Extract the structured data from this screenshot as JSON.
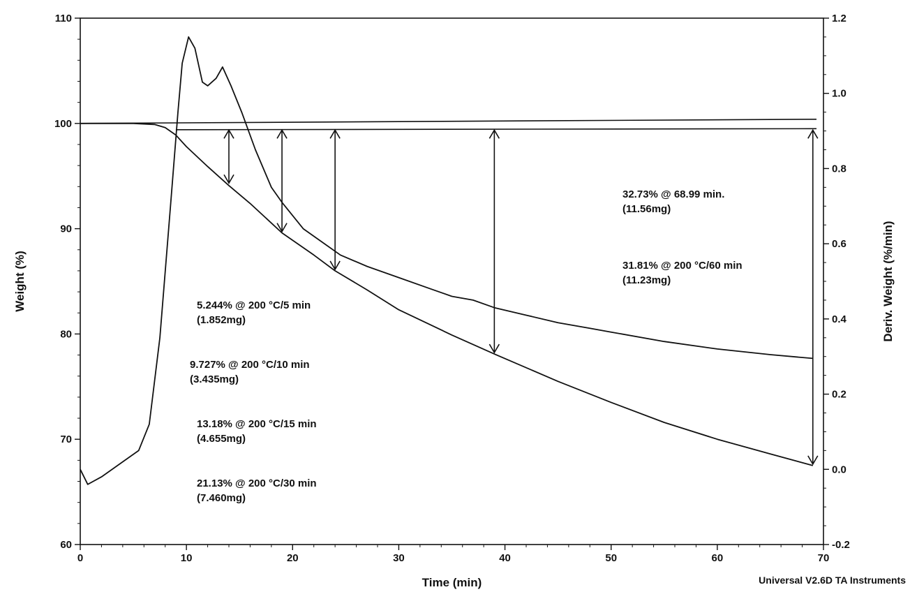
{
  "chart_data": {
    "type": "line",
    "xlabel": "Time (min)",
    "ylabel_left": "Weight (%)",
    "ylabel_right": "Deriv. Weight (%/min)",
    "xlim": [
      0,
      70
    ],
    "ylim_left": [
      60,
      110
    ],
    "ylim_right": [
      -0.2,
      1.2
    ],
    "x_ticks": [
      0,
      10,
      20,
      30,
      40,
      50,
      60,
      70
    ],
    "y_ticks_left": [
      60,
      70,
      80,
      90,
      100,
      110
    ],
    "y_ticks_right": [
      "-0.2",
      "0.0",
      "0.2",
      "0.4",
      "0.6",
      "0.8",
      "1.0",
      "1.2"
    ],
    "y_ticks_right_values": [
      -0.2,
      0.0,
      0.2,
      0.4,
      0.6,
      0.8,
      1.0,
      1.2
    ],
    "credit": "Universal V2.6D TA Instruments",
    "series": [
      {
        "axis": "left",
        "x": [
          0,
          5,
          7,
          8,
          9,
          10,
          12,
          14,
          16,
          19,
          22,
          24,
          27,
          30,
          35,
          39,
          45,
          50,
          55,
          60,
          65,
          69
        ],
        "values": [
          100,
          100,
          99.9,
          99.6,
          98.9,
          97.8,
          95.9,
          94.1,
          92.4,
          89.6,
          87.5,
          86.0,
          84.2,
          82.3,
          79.9,
          78.1,
          75.5,
          73.5,
          71.6,
          70.0,
          68.6,
          67.5
        ]
      },
      {
        "axis": "right",
        "x": [
          0,
          0.7,
          2,
          4,
          5.5,
          6.5,
          7.5,
          8.5,
          9.2,
          9.6,
          10.2,
          10.8,
          11.5,
          12,
          12.8,
          13.4,
          14.2,
          15.2,
          16.5,
          18,
          19,
          21,
          23,
          24.5,
          27,
          30,
          33,
          35,
          37,
          39,
          42,
          45,
          48,
          50,
          55,
          60,
          65,
          69
        ],
        "values": [
          0.0,
          -0.04,
          -0.02,
          0.02,
          0.05,
          0.12,
          0.35,
          0.7,
          0.95,
          1.08,
          1.15,
          1.12,
          1.03,
          1.02,
          1.04,
          1.07,
          1.02,
          0.95,
          0.85,
          0.75,
          0.71,
          0.64,
          0.6,
          0.57,
          0.54,
          0.51,
          0.48,
          0.46,
          0.45,
          0.43,
          0.41,
          0.39,
          0.375,
          0.365,
          0.34,
          0.32,
          0.305,
          0.295
        ]
      }
    ],
    "measurement_arrows": [
      {
        "x": 14,
        "y_top": 99.5,
        "y_bottom": 94.2
      },
      {
        "x": 19,
        "y_top": 99.5,
        "y_bottom": 89.6
      },
      {
        "x": 24,
        "y_top": 99.5,
        "y_bottom": 86.0
      },
      {
        "x": 39,
        "y_top": 99.5,
        "y_bottom": 78.1
      },
      {
        "x": 69,
        "y_top": 99.5,
        "y_bottom": 67.5
      }
    ],
    "annotations": [
      {
        "line1": "5.244% @ 200 °C/5 min",
        "line2": "(1.852mg)"
      },
      {
        "line1": "9.727% @ 200 °C/10 min",
        "line2": "(3.435mg)"
      },
      {
        "line1": "13.18% @ 200 °C/15 min",
        "line2": "(4.655mg)"
      },
      {
        "line1": "21.13% @ 200 °C/30 min",
        "line2": "(7.460mg)"
      },
      {
        "line1": "32.73% @ 68.99 min.",
        "line2": "(11.56mg)"
      },
      {
        "line1": "31.81% @ 200 °C/60 min",
        "line2": "(11.23mg)"
      }
    ]
  }
}
